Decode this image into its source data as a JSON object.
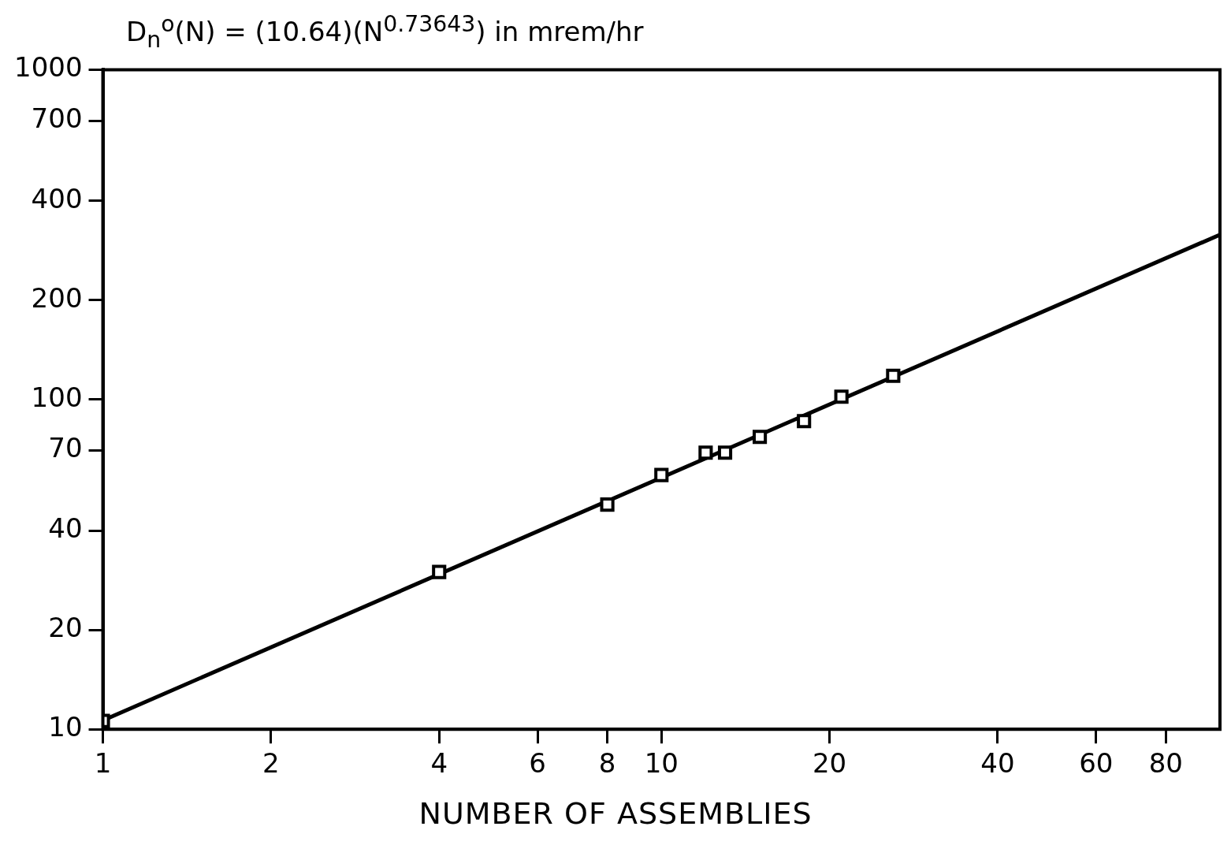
{
  "chart_data": {
    "type": "scatter",
    "title": "D$_{n}$$^{o}$(N) = (10.64)(N$^{0.73643}$) in mrem/hr",
    "xlabel": "NUMBER OF ASSEMBLIES",
    "log": "xy",
    "grid": false,
    "legend": false,
    "marker": "square",
    "xlim": [
      1,
      100
    ],
    "ylim": [
      10,
      1000
    ],
    "xticks": [
      1,
      2,
      4,
      6,
      8,
      10,
      20,
      40,
      60,
      80
    ],
    "yticks": [
      10,
      20,
      40,
      70,
      100,
      200,
      400,
      700,
      1000
    ],
    "series": [
      {
        "type": "scatter",
        "color": "#000000",
        "x": [
          1,
          4,
          8,
          10,
          12,
          13,
          15,
          18,
          21,
          26
        ],
        "values": [
          10.6,
          30,
          48,
          59,
          69,
          69,
          77,
          86,
          102,
          118
        ]
      },
      {
        "type": "line",
        "color": "#000000",
        "marker": "none",
        "x": [
          1,
          100
        ],
        "values": [
          10.64,
          316
        ]
      }
    ]
  }
}
